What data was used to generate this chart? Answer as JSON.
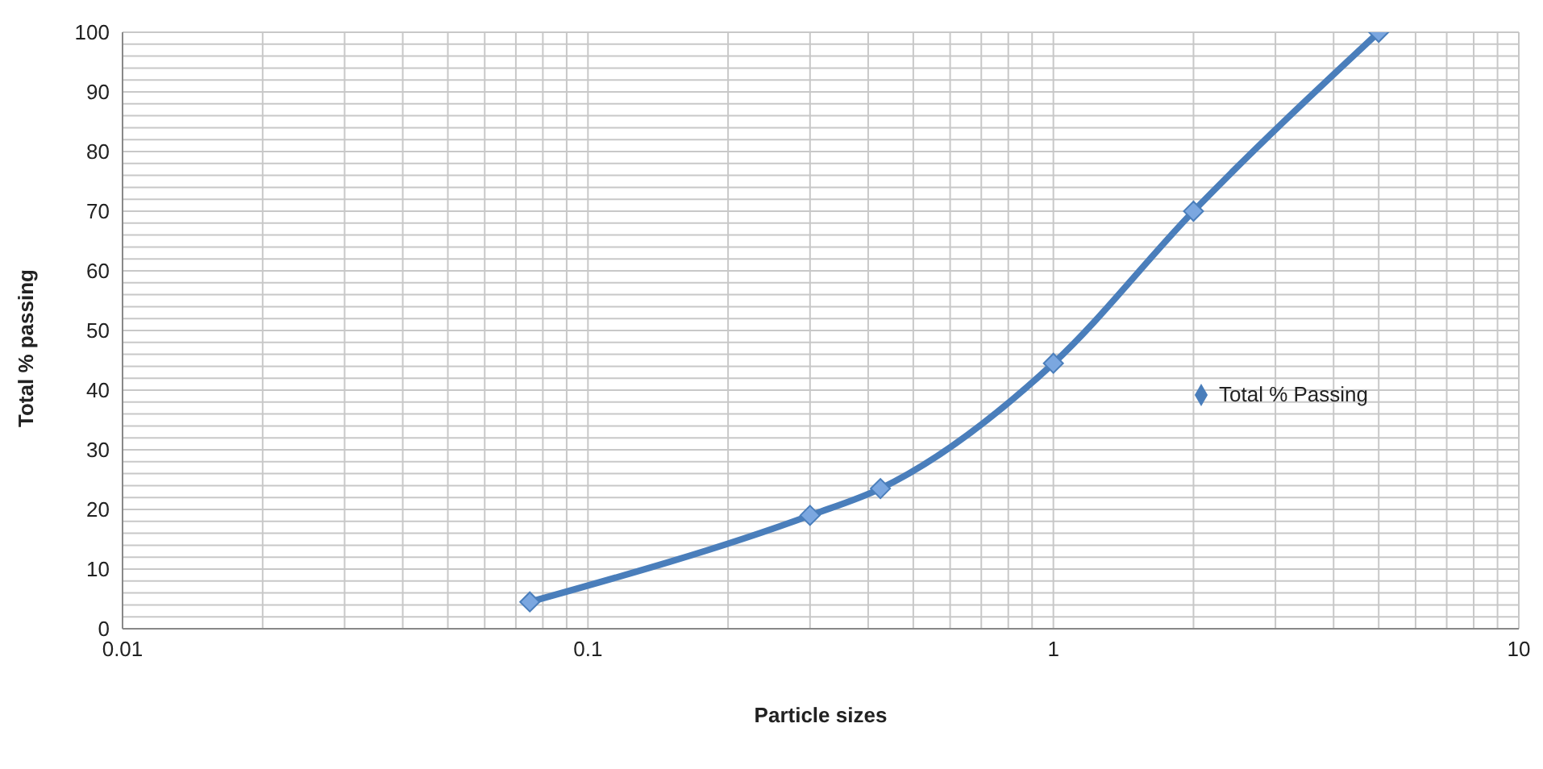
{
  "chart_data": {
    "type": "line",
    "xlabel": "Particle sizes",
    "ylabel": "Total % passing",
    "log": "x",
    "grid": true,
    "legend": "right",
    "marker": "diamond",
    "line_style": "solid",
    "x": [
      0.075,
      0.3,
      0.425,
      1,
      2,
      5
    ],
    "series": [
      {
        "name": "Total % Passing",
        "color": "#4a7ebb",
        "values": [
          4.5,
          19,
          23.5,
          44.5,
          70,
          100
        ]
      }
    ],
    "xlim": [
      0.01,
      10
    ],
    "xticks": [
      0.01,
      {
        "value": 0.02,
        "label": null
      },
      {
        "value": 0.03,
        "label": null
      },
      {
        "value": 0.04,
        "label": null
      },
      {
        "value": 0.05,
        "label": null
      },
      {
        "value": 0.06,
        "label": null
      },
      {
        "value": 0.07,
        "label": null
      },
      {
        "value": 0.08,
        "label": null
      },
      {
        "value": 0.09,
        "label": null
      },
      0.1,
      {
        "value": 0.2,
        "label": null
      },
      {
        "value": 0.3,
        "label": null
      },
      {
        "value": 0.4,
        "label": null
      },
      {
        "value": 0.5,
        "label": null
      },
      {
        "value": 0.6,
        "label": null
      },
      {
        "value": 0.7,
        "label": null
      },
      {
        "value": 0.8,
        "label": null
      },
      {
        "value": 0.9,
        "label": null
      },
      1,
      {
        "value": 2,
        "label": null
      },
      {
        "value": 3,
        "label": null
      },
      {
        "value": 4,
        "label": null
      },
      {
        "value": 5,
        "label": null
      },
      {
        "value": 6,
        "label": null
      },
      {
        "value": 7,
        "label": null
      },
      {
        "value": 8,
        "label": null
      },
      {
        "value": 9,
        "label": null
      },
      10
    ],
    "ylim": [
      0,
      100
    ],
    "yticks": [
      0,
      {
        "value": 2,
        "label": null
      },
      {
        "value": 4,
        "label": null
      },
      {
        "value": 6,
        "label": null
      },
      {
        "value": 8,
        "label": null
      },
      10,
      {
        "value": 12,
        "label": null
      },
      {
        "value": 14,
        "label": null
      },
      {
        "value": 16,
        "label": null
      },
      {
        "value": 18,
        "label": null
      },
      20,
      {
        "value": 22,
        "label": null
      },
      {
        "value": 24,
        "label": null
      },
      {
        "value": 26,
        "label": null
      },
      {
        "value": 28,
        "label": null
      },
      30,
      {
        "value": 32,
        "label": null
      },
      {
        "value": 34,
        "label": null
      },
      {
        "value": 36,
        "label": null
      },
      {
        "value": 38,
        "label": null
      },
      40,
      {
        "value": 42,
        "label": null
      },
      {
        "value": 44,
        "label": null
      },
      {
        "value": 46,
        "label": null
      },
      {
        "value": 48,
        "label": null
      },
      50,
      {
        "value": 52,
        "label": null
      },
      {
        "value": 54,
        "label": null
      },
      {
        "value": 56,
        "label": null
      },
      {
        "value": 58,
        "label": null
      },
      60,
      {
        "value": 62,
        "label": null
      },
      {
        "value": 64,
        "label": null
      },
      {
        "value": 66,
        "label": null
      },
      {
        "value": 68,
        "label": null
      },
      70,
      {
        "value": 72,
        "label": null
      },
      {
        "value": 74,
        "label": null
      },
      {
        "value": 76,
        "label": null
      },
      {
        "value": 78,
        "label": null
      },
      80,
      {
        "value": 82,
        "label": null
      },
      {
        "value": 84,
        "label": null
      },
      {
        "value": 86,
        "label": null
      },
      {
        "value": 88,
        "label": null
      },
      90,
      {
        "value": 92,
        "label": null
      },
      {
        "value": 94,
        "label": null
      },
      {
        "value": 96,
        "label": null
      },
      {
        "value": 98,
        "label": null
      },
      100
    ]
  }
}
